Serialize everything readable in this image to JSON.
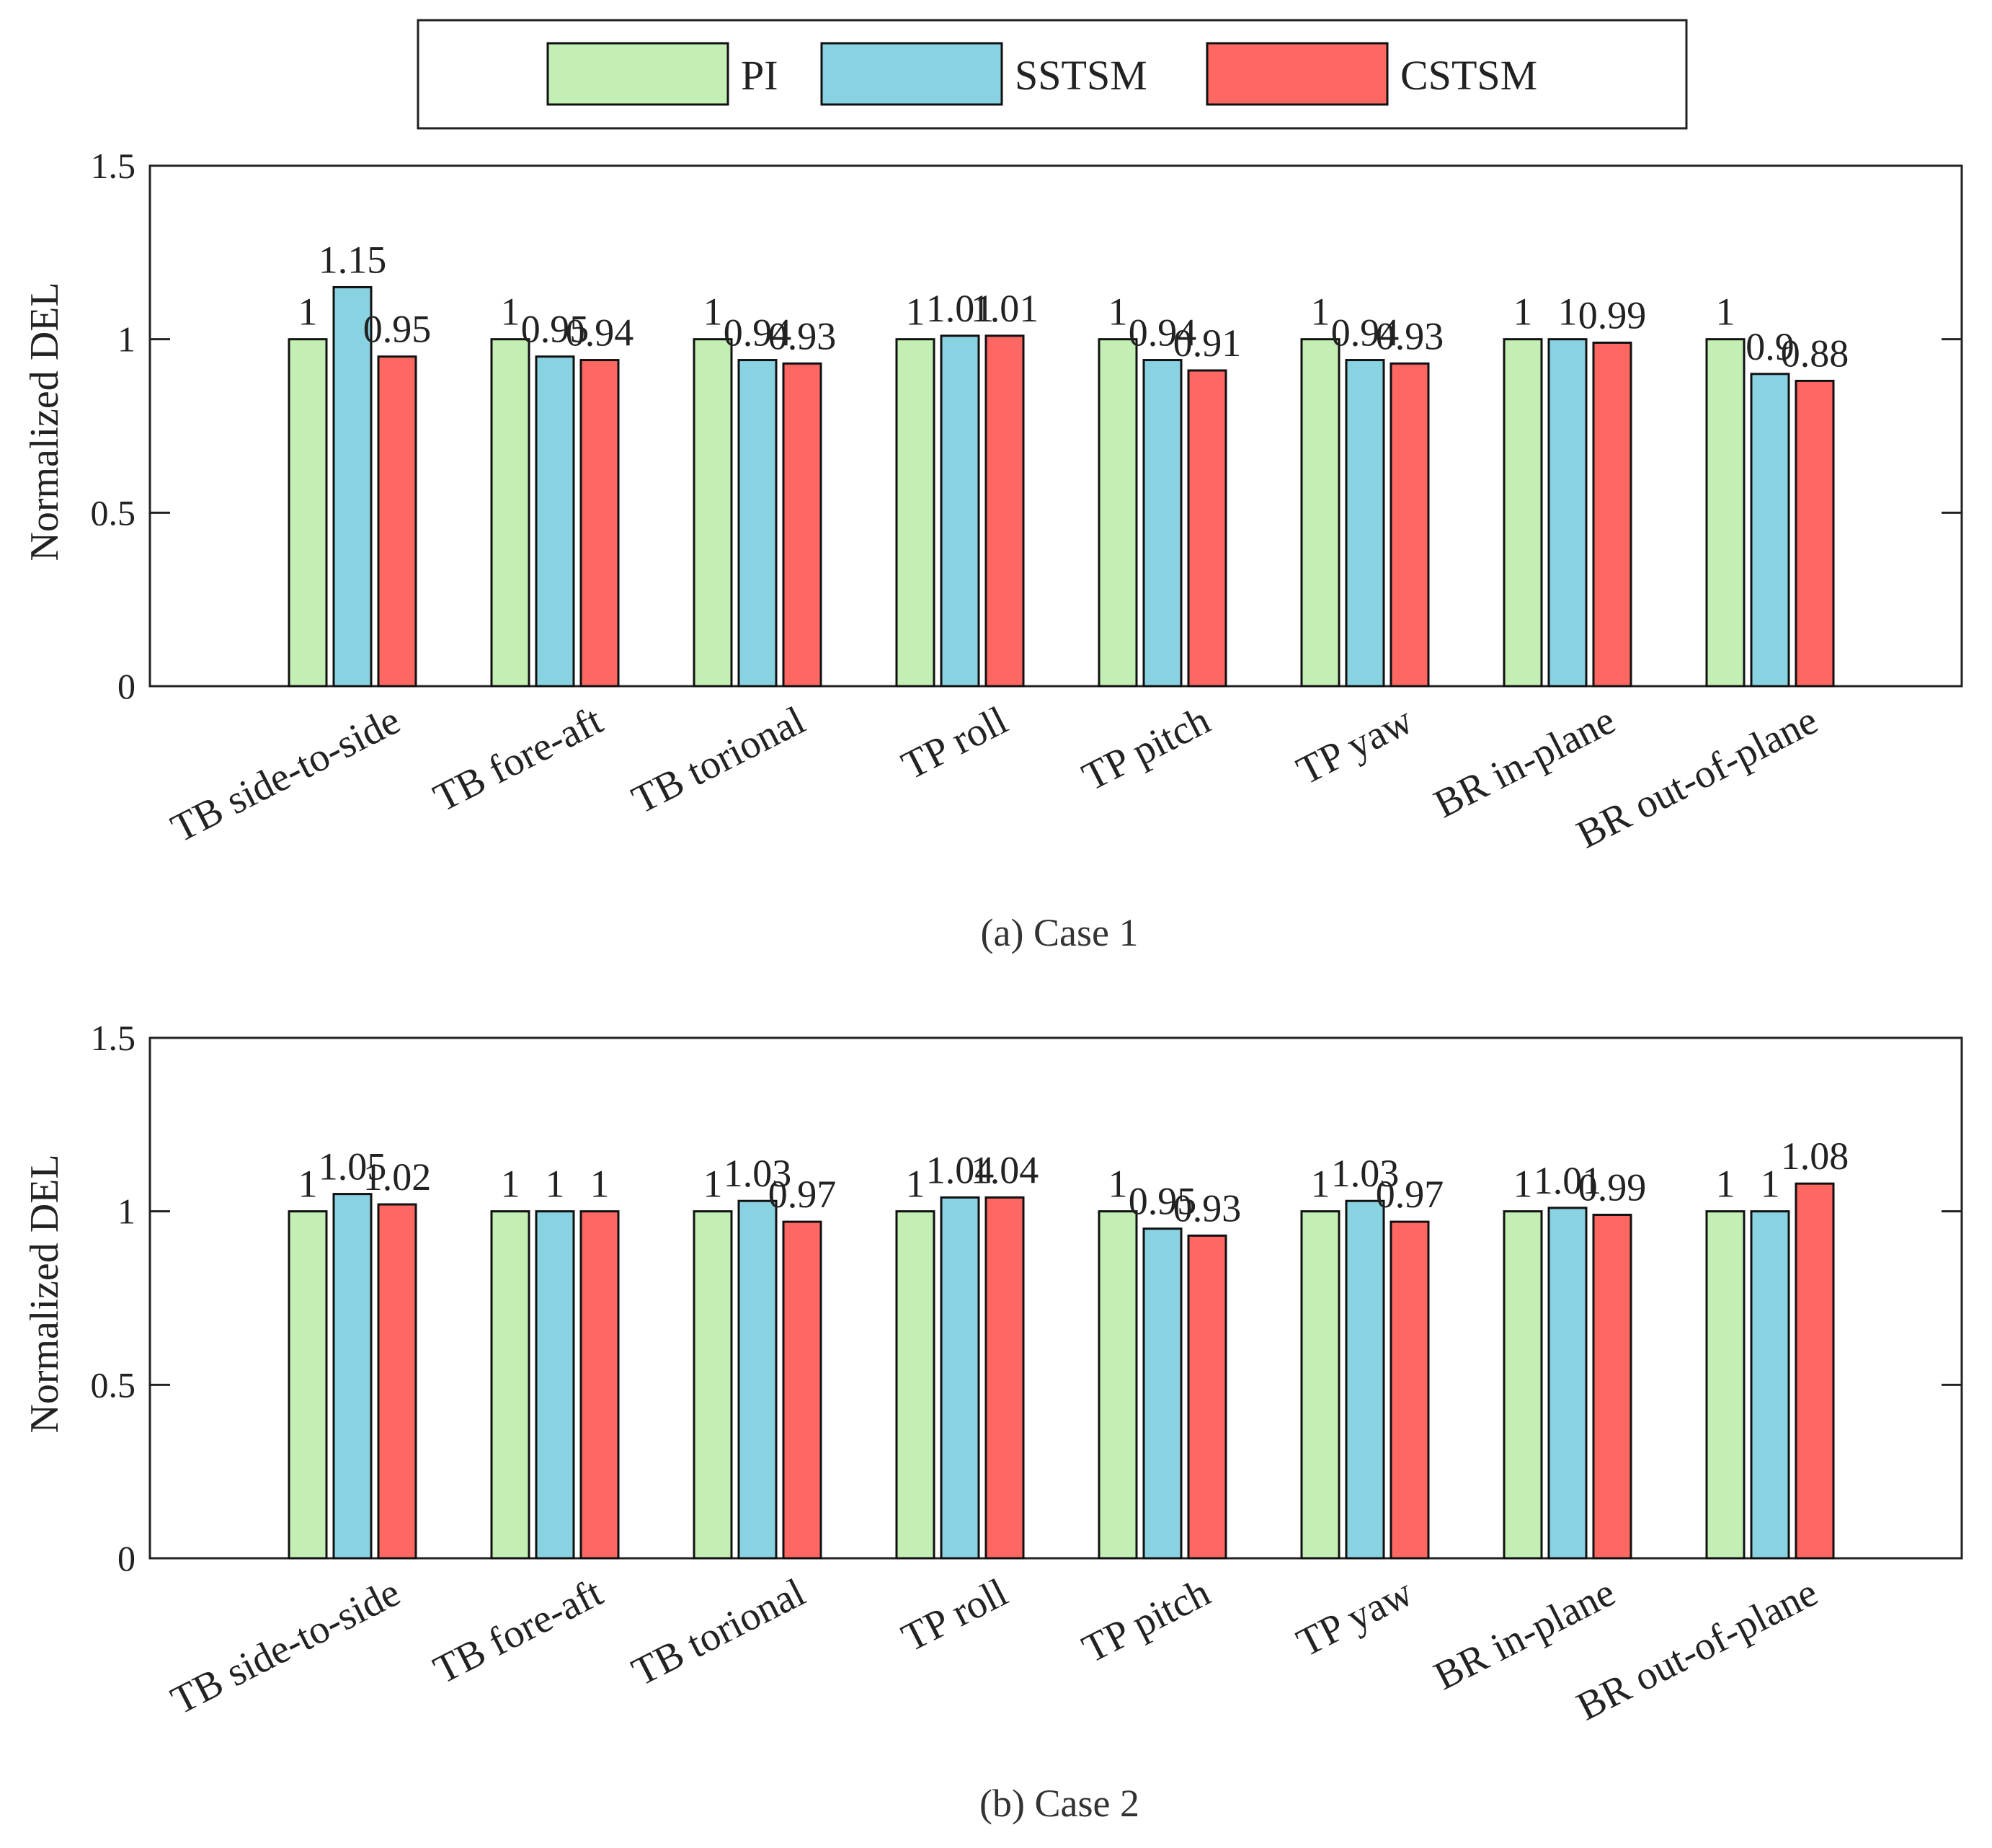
{
  "legend": [
    {
      "name": "PI",
      "color": "#C3EEB4"
    },
    {
      "name": "SSTSM",
      "color": "#89D2E2"
    },
    {
      "name": "CSTSM",
      "color": "#FE6762"
    }
  ],
  "chart_data": [
    {
      "type": "bar",
      "caption": "(a) Case 1",
      "ylabel": "Normalized DEL",
      "ylim": [
        0,
        1.5
      ],
      "yticks": [
        "0",
        "0.5",
        "1",
        "1.5"
      ],
      "categories": [
        "TB side-to-side",
        "TB fore-aft",
        "TB torional",
        "TP roll",
        "TP pitch",
        "TP yaw",
        "BR in-plane",
        "BR out-of-plane"
      ],
      "series": [
        {
          "name": "PI",
          "values": [
            1,
            1,
            1,
            1,
            1,
            1,
            1,
            1
          ],
          "labels": [
            "1",
            "1",
            "1",
            "1",
            "1",
            "1",
            "1",
            "1"
          ]
        },
        {
          "name": "SSTSM",
          "values": [
            1.15,
            0.95,
            0.94,
            1.01,
            0.94,
            0.94,
            1,
            0.9
          ],
          "labels": [
            "1.15",
            "0.95",
            "0.94",
            "1.01",
            "0.94",
            "0.94",
            "1",
            "0.9"
          ]
        },
        {
          "name": "CSTSM",
          "values": [
            0.95,
            0.94,
            0.93,
            1.01,
            0.91,
            0.93,
            0.99,
            0.88
          ],
          "labels": [
            "0.95",
            "0.94",
            "0.93",
            "1.01",
            "0.91",
            "0.93",
            "0.99",
            "0.88"
          ]
        }
      ]
    },
    {
      "type": "bar",
      "caption": "(b) Case 2",
      "ylabel": "Normalized DEL",
      "ylim": [
        0,
        1.5
      ],
      "yticks": [
        "0",
        "0.5",
        "1",
        "1.5"
      ],
      "categories": [
        "TB side-to-side",
        "TB fore-aft",
        "TB torional",
        "TP roll",
        "TP pitch",
        "TP yaw",
        "BR in-plane",
        "BR out-of-plane"
      ],
      "series": [
        {
          "name": "PI",
          "values": [
            1,
            1,
            1,
            1,
            1,
            1,
            1,
            1
          ],
          "labels": [
            "1",
            "1",
            "1",
            "1",
            "1",
            "1",
            "1",
            "1"
          ]
        },
        {
          "name": "SSTSM",
          "values": [
            1.05,
            1,
            1.03,
            1.04,
            0.95,
            1.03,
            1.01,
            1
          ],
          "labels": [
            "1.05",
            "1",
            "1.03",
            "1.04",
            "0.95",
            "1.03",
            "1.01",
            "1"
          ]
        },
        {
          "name": "CSTSM",
          "values": [
            1.02,
            1,
            0.97,
            1.04,
            0.93,
            0.97,
            0.99,
            1.08
          ],
          "labels": [
            "1.02",
            "1",
            "0.97",
            "1.04",
            "0.93",
            "0.97",
            "0.99",
            "1.08"
          ]
        }
      ]
    }
  ]
}
